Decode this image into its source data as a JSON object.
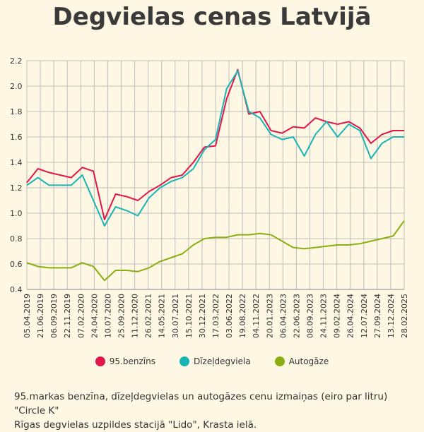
{
  "chart_data": {
    "type": "line",
    "title": "Degvielas cenas Latvijā",
    "caption_lines": [
      "95.markas benzīna, dīzeļdegvielas un autogāzes cenu izmaiņas (eiro par litru) \"Circle K\"",
      "Rīgas degvielas uzpildes stacijā \"Lido\", Krasta ielā."
    ],
    "ylim": [
      0.4,
      2.2
    ],
    "yticks": [
      "0.4",
      "0.6",
      "0.8",
      "1.0",
      "1.2",
      "1.4",
      "1.6",
      "1.8",
      "2.0",
      "2.2"
    ],
    "grid": true,
    "legend_position": "bottom",
    "x_ticks": [
      "05.04.2019",
      "21.06.2019",
      "06.09.2019",
      "22.11.2019",
      "07.02.2020",
      "24.04.2020",
      "10.07.2020",
      "25.09.2020",
      "11.12.2020",
      "26.02.2021",
      "14.05.2021",
      "30.07.2021",
      "15.10.2021",
      "30.12.2021",
      "17.03.2022",
      "03.06.2022",
      "19.08.2022",
      "04.11.2022",
      "20.01.2023",
      "06.04.2023",
      "22.06.2023",
      "08.09.2023",
      "24.11.2023",
      "09.02.2024",
      "26.04.2024",
      "12.07.2024",
      "27.09.2024",
      "13.12.2024",
      "28.02.2025"
    ],
    "series": [
      {
        "name": "95.benzīns",
        "color": "#e0174a",
        "values": [
          1.24,
          1.35,
          1.32,
          1.3,
          1.28,
          1.36,
          1.33,
          0.95,
          1.15,
          1.13,
          1.1,
          1.17,
          1.22,
          1.28,
          1.3,
          1.4,
          1.52,
          1.53,
          1.9,
          2.13,
          1.78,
          1.8,
          1.65,
          1.63,
          1.68,
          1.67,
          1.75,
          1.72,
          1.7,
          1.72,
          1.67,
          1.55,
          1.62,
          1.65,
          1.65
        ]
      },
      {
        "name": "Dīzeļdegviela",
        "color": "#19b5b5",
        "values": [
          1.22,
          1.28,
          1.22,
          1.22,
          1.22,
          1.3,
          1.1,
          0.9,
          1.05,
          1.02,
          0.98,
          1.12,
          1.2,
          1.25,
          1.28,
          1.35,
          1.5,
          1.58,
          1.98,
          2.12,
          1.8,
          1.75,
          1.62,
          1.58,
          1.6,
          1.45,
          1.62,
          1.72,
          1.6,
          1.7,
          1.65,
          1.43,
          1.55,
          1.6,
          1.6
        ]
      },
      {
        "name": "Autogāze",
        "color": "#8aae12",
        "values": [
          0.61,
          0.58,
          0.57,
          0.57,
          0.57,
          0.61,
          0.58,
          0.47,
          0.55,
          0.55,
          0.54,
          0.57,
          0.62,
          0.65,
          0.68,
          0.75,
          0.8,
          0.81,
          0.81,
          0.83,
          0.83,
          0.84,
          0.83,
          0.78,
          0.73,
          0.72,
          0.73,
          0.74,
          0.75,
          0.75,
          0.76,
          0.78,
          0.8,
          0.82,
          0.94
        ]
      }
    ]
  }
}
